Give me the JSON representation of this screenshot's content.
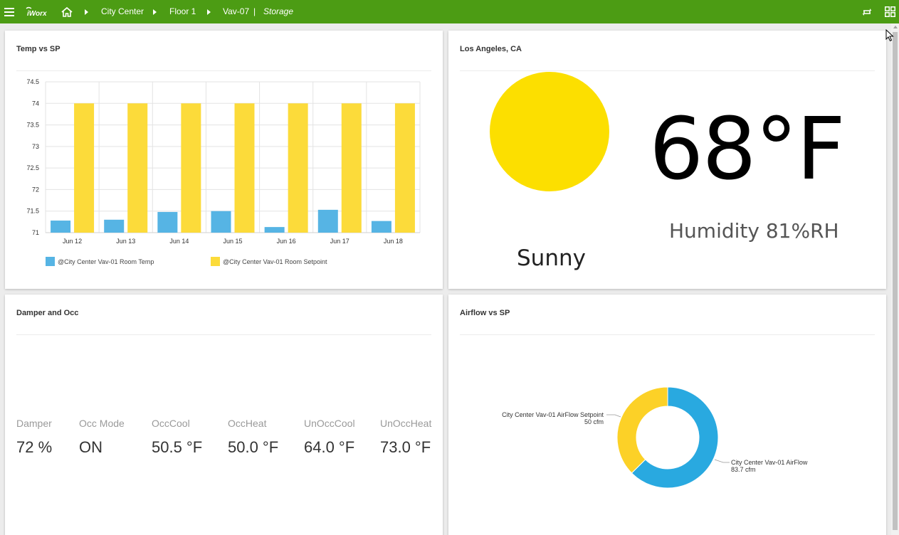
{
  "topbar": {
    "bg_color": "#4c9c14",
    "menu_icon": "hamburger-menu-icon",
    "logo_text": "iWorx",
    "home_icon": "home-icon",
    "breadcrumbs": [
      "City Center",
      "Floor 1",
      "Vav-07"
    ],
    "separator": "|",
    "current_view": "Storage",
    "right_icons": [
      "swap-icon",
      "grid-view-icon"
    ]
  },
  "temp_chart_card": {
    "title": "Temp vs SP",
    "chart_data": {
      "type": "bar",
      "categories": [
        "Jun 12",
        "Jun 13",
        "Jun 14",
        "Jun 15",
        "Jun 16",
        "Jun 17",
        "Jun 18"
      ],
      "series": [
        {
          "name": "@City Center Vav-01 Room Temp",
          "color": "#56b4e4",
          "values": [
            71.28,
            71.3,
            71.48,
            71.5,
            71.13,
            71.53,
            71.27
          ]
        },
        {
          "name": "@City Center Vav-01 Room Setpoint",
          "color": "#fcdb3a",
          "values": [
            74,
            74,
            74,
            74,
            74,
            74,
            74
          ]
        }
      ],
      "ylim": [
        71,
        74.5
      ],
      "yticks": [
        "74.5",
        "74",
        "73.5",
        "73",
        "72.5",
        "72",
        "71.5",
        "71"
      ],
      "grid": true,
      "legend": "bottom",
      "title": "",
      "xlabel": "",
      "ylabel": ""
    }
  },
  "weather_card": {
    "title": "Los Angeles, CA",
    "temperature": "68°F",
    "humidity": "Humidity 81%RH",
    "condition": "Sunny",
    "sun_icon": "sun-icon",
    "sun_color": "#fcdf00"
  },
  "damper_card": {
    "title": "Damper and Occ",
    "items": [
      {
        "label": "Damper",
        "value": "72 %"
      },
      {
        "label": "Occ Mode",
        "value": "ON"
      },
      {
        "label": "OccCool",
        "value": "50.5 °F"
      },
      {
        "label": "OccHeat",
        "value": "50.0 °F"
      },
      {
        "label": "UnOccCool",
        "value": "64.0 °F"
      },
      {
        "label": "UnOccHeat",
        "value": "73.0 °F"
      }
    ]
  },
  "airflow_card": {
    "title": "Airflow vs SP",
    "chart_data": {
      "type": "pie",
      "donut": true,
      "slices": [
        {
          "name": "City Center Vav-01 AirFlow",
          "value": 83.7,
          "unit": "cfm",
          "label_value": "83.7 cfm",
          "color": "#29a9e0"
        },
        {
          "name": "City Center Vav-01 AirFlow Setpoint",
          "value": 50,
          "unit": "cfm",
          "label_value": "50 cfm",
          "color": "#fcd127"
        }
      ],
      "title": ""
    }
  }
}
